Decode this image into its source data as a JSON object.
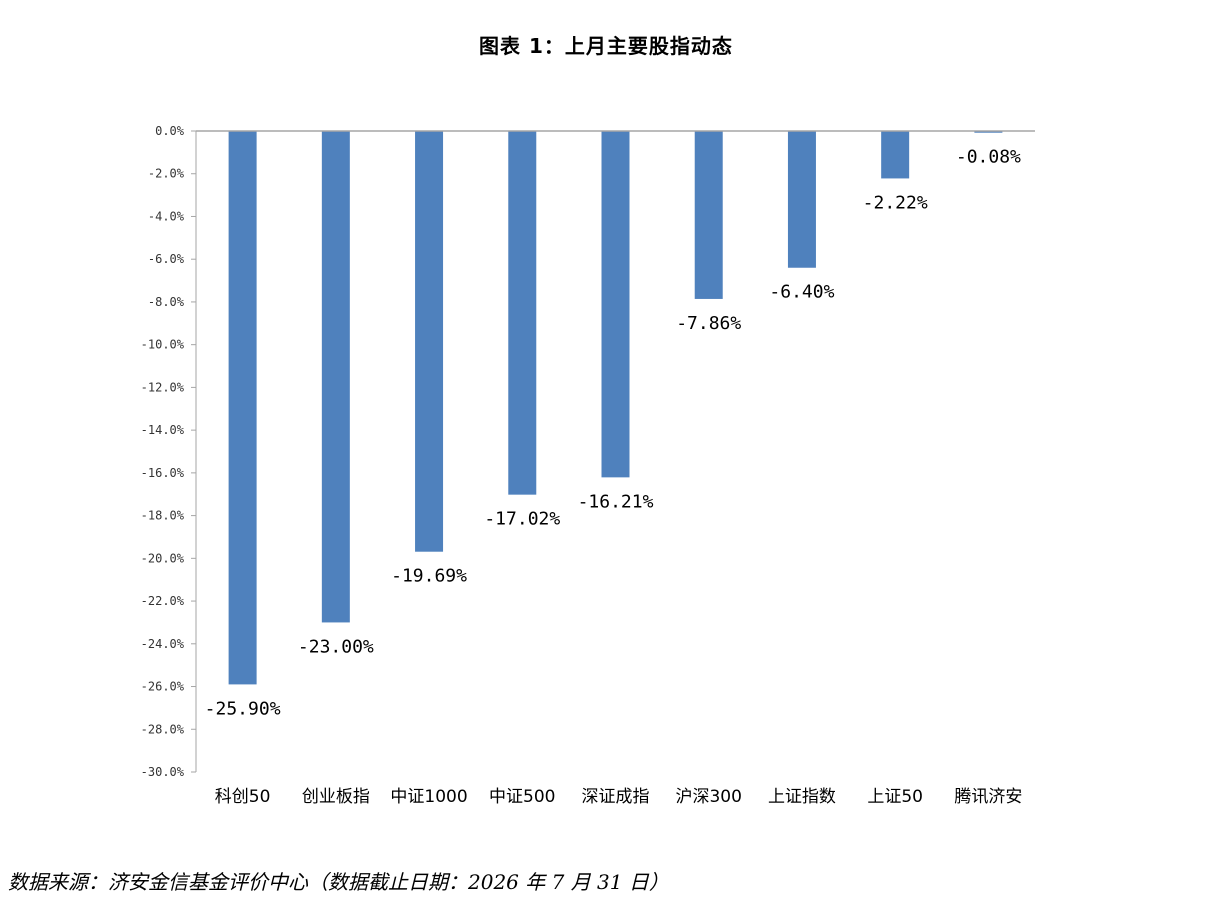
{
  "chart_data": {
    "type": "bar",
    "title": "图表 1：上月主要股指动态",
    "categories": [
      "科创50",
      "创业板指",
      "中证1000",
      "中证500",
      "深证成指",
      "沪深300",
      "上证指数",
      "上证50",
      "腾讯济安"
    ],
    "values": [
      -25.9,
      -23.0,
      -19.69,
      -17.02,
      -16.21,
      -7.86,
      -6.4,
      -2.22,
      -0.08
    ],
    "data_labels": [
      "-25.90%",
      "-23.00%",
      "-19.69%",
      "-17.02%",
      "-16.21%",
      "-7.86%",
      "-6.40%",
      "-2.22%",
      "-0.08%"
    ],
    "y_ticks": [
      0,
      -2,
      -4,
      -6,
      -8,
      -10,
      -12,
      -14,
      -16,
      -18,
      -20,
      -22,
      -24,
      -26,
      -28,
      -30
    ],
    "y_tick_labels": [
      "0.0%",
      "-2.0%",
      "-4.0%",
      "-6.0%",
      "-8.0%",
      "-10.0%",
      "-12.0%",
      "-14.0%",
      "-16.0%",
      "-18.0%",
      "-20.0%",
      "-22.0%",
      "-24.0%",
      "-26.0%",
      "-28.0%",
      "-30.0%"
    ],
    "ylim": [
      -30,
      0
    ],
    "xlabel": "",
    "ylabel": "",
    "grid": false,
    "legend": "none",
    "bar_color": "#4F81BD",
    "axis_color": "#A6A6A6"
  },
  "footer": {
    "source": "数据来源：济安金信基金评价中心（数据截止日期：2026 年 7 月 31 日）"
  }
}
